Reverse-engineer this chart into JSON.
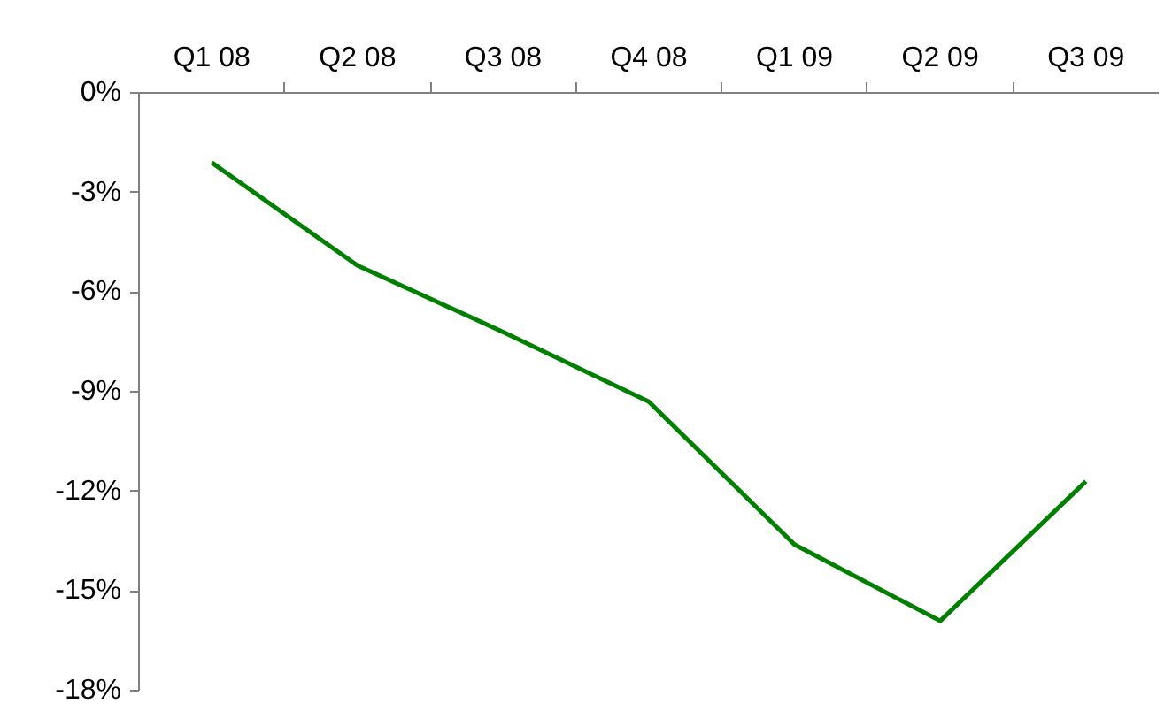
{
  "chart_data": {
    "type": "line",
    "categories": [
      "Q1 08",
      "Q2 08",
      "Q3 08",
      "Q4 08",
      "Q1 09",
      "Q2 09",
      "Q3 09"
    ],
    "values": [
      -2.1,
      -5.2,
      -7.2,
      -9.3,
      -13.6,
      -15.9,
      -11.7
    ],
    "color": "#008000",
    "ylim": [
      -18,
      0
    ],
    "yticks": [
      {
        "value": 0,
        "label": "0%"
      },
      {
        "value": -3,
        "label": "-3%"
      },
      {
        "value": -6,
        "label": "-6%"
      },
      {
        "value": -9,
        "label": "-9%"
      },
      {
        "value": -12,
        "label": "-12%"
      },
      {
        "value": -15,
        "label": "-15%"
      },
      {
        "value": -18,
        "label": "-18%"
      }
    ],
    "grid": false,
    "marker": "none",
    "line_style": "solid"
  }
}
